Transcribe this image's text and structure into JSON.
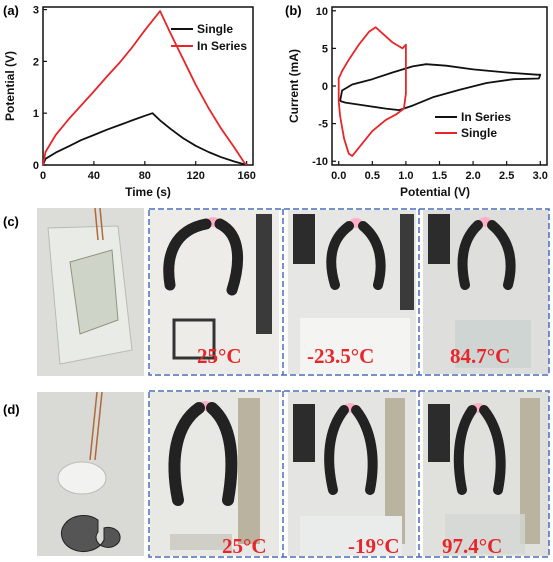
{
  "panels": {
    "a": "(a)",
    "b": "(b)",
    "c": "(c)",
    "d": "(d)"
  },
  "chart_data": [
    {
      "panel": "(a)",
      "type": "line",
      "xlabel": "Time (s)",
      "ylabel": "Potential (V)",
      "xlim": [
        0,
        165
      ],
      "ylim": [
        0,
        3.05
      ],
      "xticks": [
        "0",
        "40",
        "80",
        "120",
        "160"
      ],
      "yticks": [
        "0",
        "1",
        "2",
        "3"
      ],
      "legend_position": "top-right",
      "series": [
        {
          "name": "Single",
          "color": "#111111",
          "points": [
            [
              0,
              0
            ],
            [
              2,
              0.12
            ],
            [
              10,
              0.24
            ],
            [
              20,
              0.36
            ],
            [
              30,
              0.48
            ],
            [
              40,
              0.58
            ],
            [
              50,
              0.68
            ],
            [
              60,
              0.77
            ],
            [
              70,
              0.86
            ],
            [
              80,
              0.95
            ],
            [
              86,
              1.0
            ],
            [
              92,
              0.86
            ],
            [
              100,
              0.7
            ],
            [
              110,
              0.52
            ],
            [
              120,
              0.37
            ],
            [
              130,
              0.25
            ],
            [
              140,
              0.15
            ],
            [
              150,
              0.07
            ],
            [
              160,
              0.0
            ]
          ]
        },
        {
          "name": "In Series",
          "color": "#e8262a",
          "points": [
            [
              0,
              0
            ],
            [
              2,
              0.25
            ],
            [
              10,
              0.58
            ],
            [
              20,
              0.88
            ],
            [
              30,
              1.15
            ],
            [
              40,
              1.42
            ],
            [
              50,
              1.7
            ],
            [
              60,
              1.97
            ],
            [
              70,
              2.27
            ],
            [
              80,
              2.6
            ],
            [
              92,
              2.97
            ],
            [
              100,
              2.55
            ],
            [
              110,
              2.05
            ],
            [
              120,
              1.55
            ],
            [
              130,
              1.1
            ],
            [
              140,
              0.7
            ],
            [
              150,
              0.35
            ],
            [
              158,
              0.05
            ],
            [
              160,
              0.0
            ]
          ]
        }
      ]
    },
    {
      "panel": "(b)",
      "type": "line",
      "xlabel": "Potential (V)",
      "ylabel": "Current (mA)",
      "xlim": [
        -0.1,
        3.1
      ],
      "ylim": [
        -10.5,
        10.5
      ],
      "xticks": [
        "0.0",
        "0.5",
        "1.0",
        "1.5",
        "2.0",
        "2.5",
        "3.0"
      ],
      "yticks": [
        "-10",
        "-5",
        "0",
        "5",
        "10"
      ],
      "legend_position": "bottom-right",
      "series": [
        {
          "name": "In Series",
          "color": "#111111",
          "points": [
            [
              0.02,
              -2.0
            ],
            [
              0.05,
              -0.6
            ],
            [
              0.2,
              0.2
            ],
            [
              0.5,
              0.9
            ],
            [
              0.8,
              1.8
            ],
            [
              1.1,
              2.6
            ],
            [
              1.3,
              2.9
            ],
            [
              1.6,
              2.7
            ],
            [
              2.0,
              2.2
            ],
            [
              2.5,
              1.8
            ],
            [
              2.95,
              1.5
            ],
            [
              3.0,
              1.5
            ],
            [
              2.98,
              1.0
            ],
            [
              2.6,
              0.9
            ],
            [
              2.2,
              0.4
            ],
            [
              1.8,
              -0.5
            ],
            [
              1.4,
              -1.5
            ],
            [
              1.1,
              -2.6
            ],
            [
              0.9,
              -3.2
            ],
            [
              0.7,
              -3.0
            ],
            [
              0.4,
              -2.6
            ],
            [
              0.1,
              -2.2
            ],
            [
              0.02,
              -2.0
            ]
          ]
        },
        {
          "name": "Single",
          "color": "#e8262a",
          "points": [
            [
              0.0,
              -2.0
            ],
            [
              0.02,
              -4.0
            ],
            [
              0.08,
              -7.0
            ],
            [
              0.15,
              -9.0
            ],
            [
              0.2,
              -9.3
            ],
            [
              0.3,
              -8.2
            ],
            [
              0.5,
              -6.0
            ],
            [
              0.7,
              -4.5
            ],
            [
              0.85,
              -3.8
            ],
            [
              0.97,
              -3.0
            ],
            [
              1.0,
              -1.0
            ],
            [
              1.0,
              5.5
            ],
            [
              0.95,
              5.0
            ],
            [
              0.8,
              5.8
            ],
            [
              0.65,
              7.0
            ],
            [
              0.55,
              7.8
            ],
            [
              0.45,
              7.2
            ],
            [
              0.3,
              5.5
            ],
            [
              0.15,
              3.5
            ],
            [
              0.05,
              2.0
            ],
            [
              0.0,
              1.0
            ],
            [
              0.0,
              -2.0
            ]
          ]
        }
      ]
    }
  ],
  "photos": {
    "c": {
      "temps": [
        "25°C",
        "-23.5°C",
        "84.7°C"
      ]
    },
    "d": {
      "temps": [
        "25°C",
        "-19°C",
        "97.4°C"
      ]
    }
  }
}
